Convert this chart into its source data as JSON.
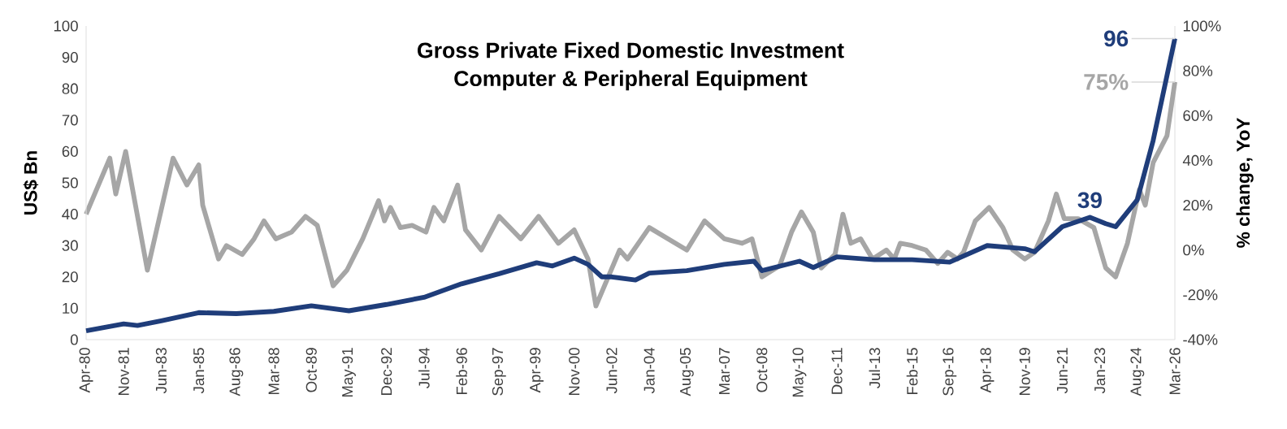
{
  "chart_data": {
    "type": "line",
    "title": "Gross Private Fixed Domestic Investment",
    "subtitle": "Computer & Peripheral Equipment",
    "ylabel": "US$ Bn",
    "y2label": "% change, YoY",
    "xlim": [
      "1980-04",
      "2026-03"
    ],
    "xticks": [
      {
        "value": "1980-04",
        "label": "Apr-80"
      },
      {
        "value": "1981-11",
        "label": "Nov-81"
      },
      {
        "value": "1983-06",
        "label": "Jun-83"
      },
      {
        "value": "1985-01",
        "label": "Jan-85"
      },
      {
        "value": "1986-08",
        "label": "Aug-86"
      },
      {
        "value": "1988-03",
        "label": "Mar-88"
      },
      {
        "value": "1989-10",
        "label": "Oct-89"
      },
      {
        "value": "1991-05",
        "label": "May-91"
      },
      {
        "value": "1992-12",
        "label": "Dec-92"
      },
      {
        "value": "1994-07",
        "label": "Jul-94"
      },
      {
        "value": "1996-02",
        "label": "Feb-96"
      },
      {
        "value": "1997-09",
        "label": "Sep-97"
      },
      {
        "value": "1999-04",
        "label": "Apr-99"
      },
      {
        "value": "2000-11",
        "label": "Nov-00"
      },
      {
        "value": "2002-06",
        "label": "Jun-02"
      },
      {
        "value": "2004-01",
        "label": "Jan-04"
      },
      {
        "value": "2005-08",
        "label": "Aug-05"
      },
      {
        "value": "2007-03",
        "label": "Mar-07"
      },
      {
        "value": "2008-10",
        "label": "Oct-08"
      },
      {
        "value": "2010-05",
        "label": "May-10"
      },
      {
        "value": "2011-12",
        "label": "Dec-11"
      },
      {
        "value": "2013-07",
        "label": "Jul-13"
      },
      {
        "value": "2015-02",
        "label": "Feb-15"
      },
      {
        "value": "2016-09",
        "label": "Sep-16"
      },
      {
        "value": "2018-04",
        "label": "Apr-18"
      },
      {
        "value": "2019-11",
        "label": "Nov-19"
      },
      {
        "value": "2021-06",
        "label": "Jun-21"
      },
      {
        "value": "2023-01",
        "label": "Jan-23"
      },
      {
        "value": "2024-08",
        "label": "Aug-24"
      },
      {
        "value": "2026-03",
        "label": "Mar-26"
      }
    ],
    "ylim": [
      0,
      100
    ],
    "yticks": [
      0,
      10,
      20,
      30,
      40,
      50,
      60,
      70,
      80,
      90,
      100
    ],
    "y2lim": [
      -40,
      100
    ],
    "y2ticks": [
      {
        "value": -40,
        "label": "-40%"
      },
      {
        "value": -20,
        "label": "-20%"
      },
      {
        "value": 0,
        "label": "0%"
      },
      {
        "value": 20,
        "label": "20%"
      },
      {
        "value": 40,
        "label": "40%"
      },
      {
        "value": 60,
        "label": "60%"
      },
      {
        "value": 80,
        "label": "80%"
      },
      {
        "value": 100,
        "label": "100%"
      }
    ],
    "series": [
      {
        "axis": "y2",
        "color": "#a6a6a6",
        "x": [
          "1980-04",
          "1981-04",
          "1981-07",
          "1981-12",
          "1982-11",
          "1983-12",
          "1984-07",
          "1985-01",
          "1985-03",
          "1985-11",
          "1986-03",
          "1986-11",
          "1987-05",
          "1987-10",
          "1988-04",
          "1988-12",
          "1989-07",
          "1990-01",
          "1990-09",
          "1991-04",
          "1991-12",
          "1992-08",
          "1992-11",
          "1993-02",
          "1993-07",
          "1994-01",
          "1994-08",
          "1994-12",
          "1995-05",
          "1995-12",
          "1996-04",
          "1996-12",
          "1997-09",
          "1998-08",
          "1999-05",
          "2000-03",
          "2000-11",
          "2001-06",
          "2001-10",
          "2002-10",
          "2003-02",
          "2004-01",
          "2005-08",
          "2006-05",
          "2007-03",
          "2007-12",
          "2008-05",
          "2008-10",
          "2009-07",
          "2010-01",
          "2010-06",
          "2010-12",
          "2011-04",
          "2011-11",
          "2012-03",
          "2012-07",
          "2012-12",
          "2013-06",
          "2014-01",
          "2014-05",
          "2014-08",
          "2015-02",
          "2015-09",
          "2016-03",
          "2016-08",
          "2017-01",
          "2017-04",
          "2017-10",
          "2018-05",
          "2018-12",
          "2019-05",
          "2019-11",
          "2020-04",
          "2020-11",
          "2021-03",
          "2021-07",
          "2022-02",
          "2022-10",
          "2023-04",
          "2023-09",
          "2024-03",
          "2024-09",
          "2024-12",
          "2025-04",
          "2025-11",
          "2026-03"
        ],
        "values": [
          16,
          41,
          25,
          44,
          -9,
          41,
          29,
          38,
          20,
          -4,
          2,
          -2,
          5,
          13,
          5,
          8,
          15,
          11,
          -16,
          -9,
          5,
          22,
          13,
          19,
          10,
          11,
          8,
          19,
          13,
          29,
          9,
          0,
          15,
          5,
          15,
          3,
          9,
          -4,
          -25,
          0,
          -4,
          10,
          0,
          13,
          5,
          3,
          5,
          -12,
          -7,
          8,
          17,
          8,
          -8,
          -2,
          16,
          3,
          5,
          -4,
          0,
          -4,
          3,
          2,
          0,
          -6,
          -1,
          -4,
          -1,
          13,
          19,
          10,
          0,
          -4,
          -1,
          13,
          25,
          14,
          14,
          10,
          -8,
          -12,
          3,
          27,
          20,
          39,
          51,
          75
        ]
      },
      {
        "axis": "y",
        "color": "#1f3d7a",
        "x": [
          "1980-04",
          "1981-11",
          "1982-06",
          "1983-06",
          "1985-01",
          "1986-08",
          "1988-03",
          "1989-10",
          "1991-05",
          "1992-12",
          "1994-07",
          "1996-02",
          "1997-09",
          "1999-04",
          "1999-12",
          "2000-11",
          "2001-06",
          "2002-01",
          "2002-06",
          "2003-06",
          "2004-01",
          "2005-08",
          "2007-03",
          "2008-06",
          "2008-10",
          "2010-05",
          "2010-12",
          "2011-12",
          "2013-07",
          "2015-02",
          "2016-09",
          "2018-04",
          "2019-11",
          "2020-04",
          "2021-06",
          "2022-08",
          "2023-04",
          "2023-09",
          "2024-08",
          "2025-04",
          "2026-03"
        ],
        "values": [
          2.8,
          5,
          4.5,
          6,
          8.6,
          8.3,
          9,
          10.8,
          9.2,
          11.2,
          13.5,
          17.8,
          21,
          24.5,
          23.5,
          26,
          24,
          20,
          20,
          19,
          21.2,
          22,
          24,
          25,
          22,
          25,
          23,
          26.4,
          25.5,
          25.5,
          24.7,
          30,
          29,
          28,
          36,
          39,
          37,
          36,
          44.6,
          63.5,
          96
        ]
      }
    ],
    "annotations": [
      {
        "text": "96",
        "x": "2026-03",
        "y": 96
      },
      {
        "text": "39",
        "x": "2022-08",
        "y": 39
      },
      {
        "text": "75%",
        "x": "2026-03",
        "y": 75
      }
    ]
  }
}
